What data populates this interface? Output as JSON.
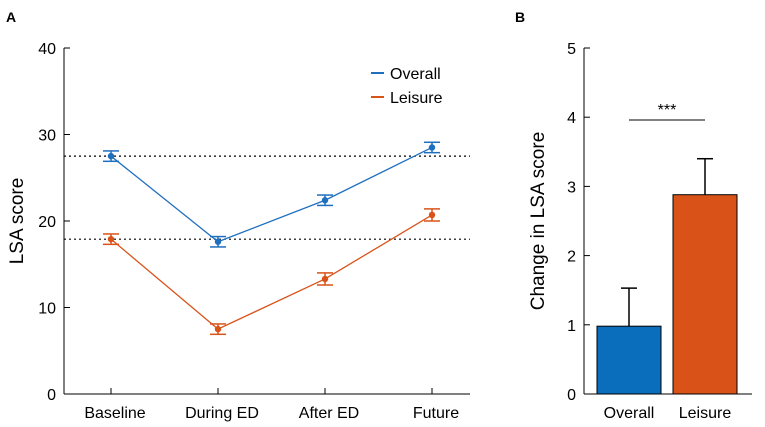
{
  "colors": {
    "overall": "#1f6fbf",
    "leisure": "#d95319",
    "reference_line": "#000000"
  },
  "chart_data": [
    {
      "panel": "A",
      "type": "line",
      "title": "",
      "xlabel": "",
      "ylabel": "LSA score",
      "categories": [
        "Baseline",
        "During ED",
        "After ED",
        "Future"
      ],
      "ylim": [
        0,
        40
      ],
      "yticks": [
        0,
        10,
        20,
        30,
        40
      ],
      "series": [
        {
          "name": "Overall",
          "color": "#1f6fbf",
          "values": [
            27.5,
            17.6,
            22.4,
            28.5
          ],
          "errors": [
            0.6,
            0.6,
            0.6,
            0.6
          ]
        },
        {
          "name": "Leisure",
          "color": "#d95319",
          "values": [
            17.9,
            7.5,
            13.3,
            20.7
          ],
          "errors": [
            0.6,
            0.6,
            0.7,
            0.7
          ]
        }
      ],
      "reference_lines": [
        27.5,
        17.9
      ],
      "legend_position": "top-right",
      "grid": false
    },
    {
      "panel": "B",
      "type": "bar",
      "title": "",
      "xlabel": "",
      "ylabel": "Change in LSA score",
      "categories": [
        "Overall",
        "Leisure"
      ],
      "values": [
        0.98,
        2.88
      ],
      "errors": [
        0.55,
        0.52
      ],
      "colors": [
        "#0a6ebd",
        "#d95319"
      ],
      "ylim": [
        0,
        5
      ],
      "yticks": [
        0,
        1,
        2,
        3,
        4,
        5
      ],
      "significance": "***",
      "grid": false
    }
  ]
}
